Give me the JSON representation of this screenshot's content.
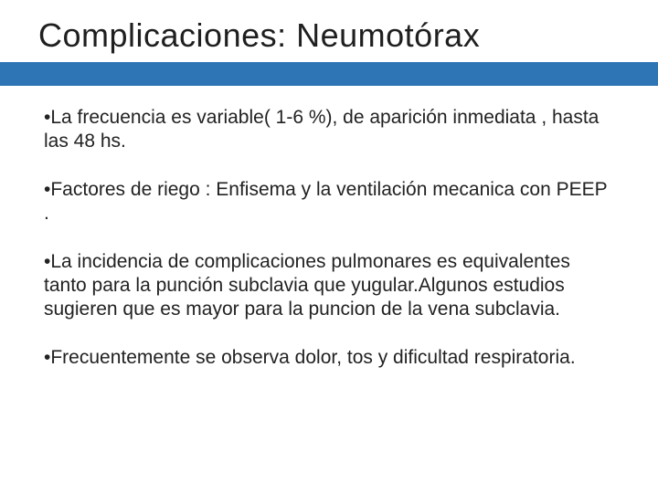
{
  "title": "Complicaciones: Neumotórax",
  "accent_color": "#2e75b6",
  "background_color": "#ffffff",
  "title_color": "#1f1f1f",
  "text_color": "#222222",
  "title_fontsize": 36,
  "body_fontsize": 21,
  "bullets": [
    "La frecuencia es variable( 1-6 %), de aparición inmediata , hasta las 48 hs.",
    "Factores de riego : Enfisema y la ventilación mecanica con PEEP .",
    "La incidencia de complicaciones pulmonares es equivalentes tanto para la punción subclavia que yugular.Algunos estudios sugieren que es mayor para la puncion de la vena subclavia.",
    "Frecuentemente se observa dolor, tos y dificultad respiratoria."
  ]
}
